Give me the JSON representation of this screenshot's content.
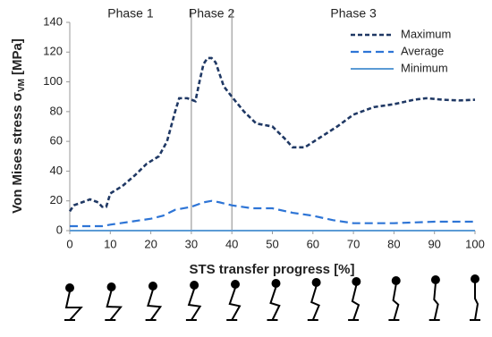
{
  "chart_data": {
    "type": "line",
    "xlabel": "STS transfer progress [%]",
    "ylabel": {
      "text": "Von Mises stress σ",
      "subscript": "VM",
      "unit": "[MPa]"
    },
    "xlim": [
      0,
      100
    ],
    "xticks": [
      0,
      10,
      20,
      30,
      40,
      50,
      60,
      70,
      80,
      90,
      100
    ],
    "ylim": [
      0,
      140
    ],
    "yticks": [
      0,
      20,
      40,
      60,
      80,
      100,
      120,
      140
    ],
    "grid": false,
    "legend": "top-right",
    "phases": [
      {
        "label": "Phase 1",
        "start": 0,
        "end": 30
      },
      {
        "label": "Phase 2",
        "start": 30,
        "end": 40
      },
      {
        "label": "Phase 3",
        "start": 40,
        "end": 100
      }
    ],
    "series": [
      {
        "name": "Maximum",
        "color": "#1f3864",
        "dash": "dashed",
        "x": [
          0,
          1,
          3,
          5,
          7,
          8,
          9,
          10,
          13,
          16,
          19,
          22,
          24,
          26,
          27,
          29,
          31,
          32,
          33,
          34,
          35,
          36,
          37,
          38,
          40,
          43,
          46,
          50,
          53,
          55,
          58,
          62,
          66,
          70,
          75,
          80,
          85,
          88,
          92,
          96,
          100
        ],
        "values": [
          13,
          17,
          19,
          21,
          19,
          16,
          16,
          25,
          30,
          37,
          45,
          50,
          60,
          80,
          89,
          89,
          87,
          100,
          112,
          116,
          116,
          113,
          105,
          97,
          90,
          80,
          72,
          70,
          62,
          56,
          56,
          63,
          70,
          78,
          83,
          85,
          88,
          89,
          88,
          87.5,
          88
        ]
      },
      {
        "name": "Average",
        "color": "#2e75d6",
        "dash": "long-dashed",
        "x": [
          0,
          5,
          8,
          10,
          15,
          20,
          23,
          26,
          30,
          33,
          35,
          37,
          40,
          45,
          50,
          55,
          60,
          65,
          70,
          75,
          80,
          85,
          90,
          100
        ],
        "values": [
          3,
          3,
          3,
          4,
          6,
          8,
          10,
          14,
          16,
          19,
          20,
          19,
          17,
          15,
          15,
          12,
          10,
          7,
          5,
          5,
          5,
          5.5,
          6,
          6
        ]
      },
      {
        "name": "Minimum",
        "color": "#5b9bd5",
        "dash": "solid",
        "x": [
          0,
          100
        ],
        "values": [
          0,
          0
        ]
      }
    ]
  }
}
